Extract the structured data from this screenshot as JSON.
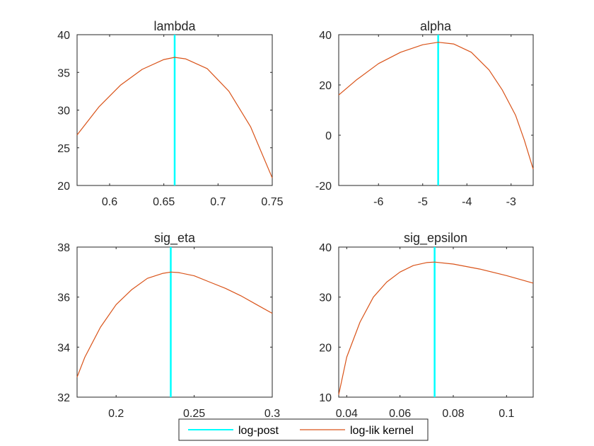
{
  "colors": {
    "log_post": "#00FFFF",
    "log_lik": "#D95319",
    "axes": "#262626"
  },
  "legend": {
    "placement": "bottom-center",
    "items": [
      "log-post",
      "log-lik kernel"
    ]
  },
  "chart_data": [
    {
      "type": "line",
      "title": "lambda",
      "xlim": [
        0.57,
        0.75
      ],
      "ylim": [
        20,
        40
      ],
      "xticks": [
        0.6,
        0.65,
        0.7,
        0.75
      ],
      "xtick_labels": [
        "0.6",
        "0.65",
        "0.7",
        "0.75"
      ],
      "yticks": [
        20,
        25,
        30,
        35,
        40
      ],
      "ytick_labels": [
        "20",
        "25",
        "30",
        "35",
        "40"
      ],
      "vline_x": 0.66,
      "series": [
        {
          "name": "log-lik kernel",
          "x": [
            0.57,
            0.59,
            0.61,
            0.63,
            0.65,
            0.66,
            0.67,
            0.69,
            0.71,
            0.73,
            0.75
          ],
          "y": [
            26.7,
            30.4,
            33.3,
            35.4,
            36.7,
            37.0,
            36.8,
            35.5,
            32.5,
            27.8,
            21.0
          ]
        }
      ]
    },
    {
      "type": "line",
      "title": "alpha",
      "xlim": [
        -6.9,
        -2.5
      ],
      "ylim": [
        -20,
        40
      ],
      "xticks": [
        -6,
        -5,
        -4,
        -3
      ],
      "xtick_labels": [
        "-6",
        "-5",
        "-4",
        "-3"
      ],
      "yticks": [
        -20,
        0,
        20,
        40
      ],
      "ytick_labels": [
        "-20",
        "0",
        "20",
        "40"
      ],
      "vline_x": -4.65,
      "series": [
        {
          "name": "log-lik kernel",
          "x": [
            -6.9,
            -6.5,
            -6.0,
            -5.5,
            -5.0,
            -4.65,
            -4.3,
            -3.9,
            -3.5,
            -3.2,
            -2.9,
            -2.7,
            -2.5
          ],
          "y": [
            16.0,
            22.0,
            28.5,
            33.0,
            36.0,
            37.0,
            36.3,
            33.0,
            26.0,
            18.0,
            8.0,
            -2.0,
            -13.5
          ]
        }
      ]
    },
    {
      "type": "line",
      "title": "sig_eta",
      "xlim": [
        0.175,
        0.3
      ],
      "ylim": [
        32,
        38
      ],
      "xticks": [
        0.2,
        0.25,
        0.3
      ],
      "xtick_labels": [
        "0.2",
        "0.25",
        "0.3"
      ],
      "yticks": [
        32,
        34,
        36,
        38
      ],
      "ytick_labels": [
        "32",
        "34",
        "36",
        "38"
      ],
      "vline_x": 0.235,
      "series": [
        {
          "name": "log-lik kernel",
          "x": [
            0.175,
            0.18,
            0.19,
            0.2,
            0.21,
            0.22,
            0.23,
            0.235,
            0.24,
            0.25,
            0.26,
            0.27,
            0.28,
            0.29,
            0.3
          ],
          "y": [
            32.8,
            33.6,
            34.8,
            35.7,
            36.3,
            36.75,
            36.95,
            37.0,
            36.98,
            36.85,
            36.6,
            36.35,
            36.05,
            35.7,
            35.35
          ]
        }
      ]
    },
    {
      "type": "line",
      "title": "sig_epsilon",
      "xlim": [
        0.037,
        0.11
      ],
      "ylim": [
        10,
        40
      ],
      "xticks": [
        0.04,
        0.06,
        0.08,
        0.1
      ],
      "xtick_labels": [
        "0.04",
        "0.06",
        "0.08",
        "0.1"
      ],
      "yticks": [
        10,
        20,
        30,
        40
      ],
      "ytick_labels": [
        "10",
        "20",
        "30",
        "40"
      ],
      "vline_x": 0.073,
      "series": [
        {
          "name": "log-lik kernel",
          "x": [
            0.037,
            0.04,
            0.045,
            0.05,
            0.055,
            0.06,
            0.065,
            0.07,
            0.073,
            0.08,
            0.09,
            0.1,
            0.11
          ],
          "y": [
            10.5,
            18.0,
            25.0,
            30.0,
            33.0,
            35.0,
            36.3,
            36.9,
            37.0,
            36.6,
            35.6,
            34.3,
            32.8
          ]
        }
      ]
    }
  ]
}
